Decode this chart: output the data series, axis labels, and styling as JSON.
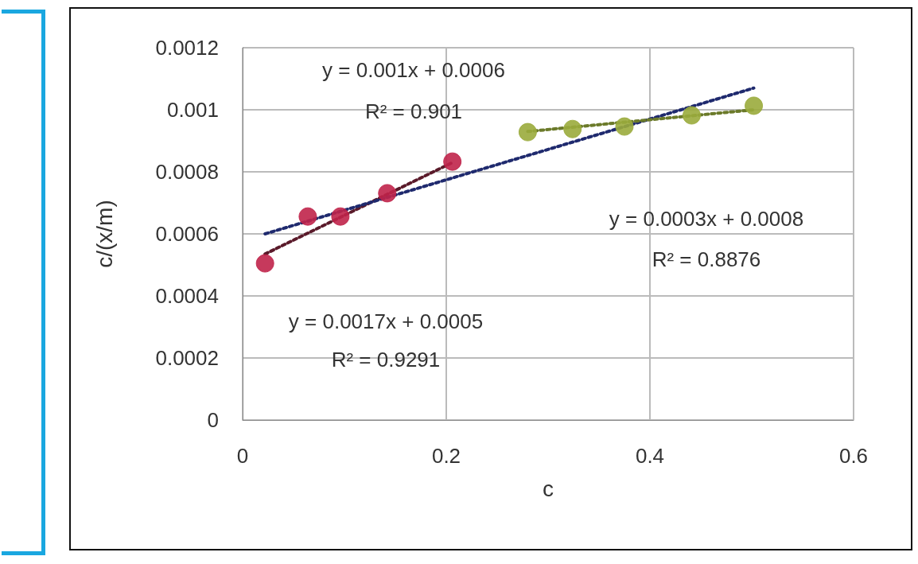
{
  "chart_data": {
    "type": "scatter",
    "xlabel": "c",
    "ylabel": "c/(x/m)",
    "xlim": [
      0,
      0.6
    ],
    "xticks": [
      0,
      0.2,
      0.4,
      0.6
    ],
    "ylim": [
      0,
      0.0012
    ],
    "yticks": [
      0,
      0.0002,
      0.0004,
      0.0006,
      0.0008,
      0.001,
      0.0012
    ],
    "grid": true,
    "marker": "circle",
    "series": [
      {
        "type": "scatter",
        "color": "#c0234a",
        "x": [
          0.022,
          0.064,
          0.096,
          0.142,
          0.206
        ],
        "values": [
          0.000505,
          0.000656,
          0.000656,
          0.000731,
          0.000833
        ]
      },
      {
        "type": "scatter",
        "color": "#9aab3c",
        "x": [
          0.28,
          0.324,
          0.375,
          0.441,
          0.502
        ],
        "values": [
          0.000928,
          0.000938,
          0.000946,
          0.000982,
          0.001013
        ]
      },
      {
        "type": "line",
        "marker": "none",
        "line_style": "dotted",
        "color": "#5a1a2a",
        "x": [
          0.022,
          0.206
        ],
        "values": [
          0.000535,
          0.00083
        ]
      },
      {
        "type": "line",
        "marker": "none",
        "line_style": "dotted",
        "color": "#1f2a6e",
        "x": [
          0.022,
          0.502
        ],
        "values": [
          0.0006,
          0.00107
        ]
      },
      {
        "type": "line",
        "marker": "none",
        "line_style": "dotted",
        "color": "#6b7a2a",
        "x": [
          0.28,
          0.502
        ],
        "values": [
          0.00093,
          0.001
        ]
      }
    ],
    "annotations": [
      "y = 0.001x + 0.0006",
      "R² = 0.901",
      "y = 0.0003x + 0.0008",
      "R² = 0.8876",
      "y = 0.0017x + 0.0005",
      "R² = 0.9291"
    ]
  }
}
